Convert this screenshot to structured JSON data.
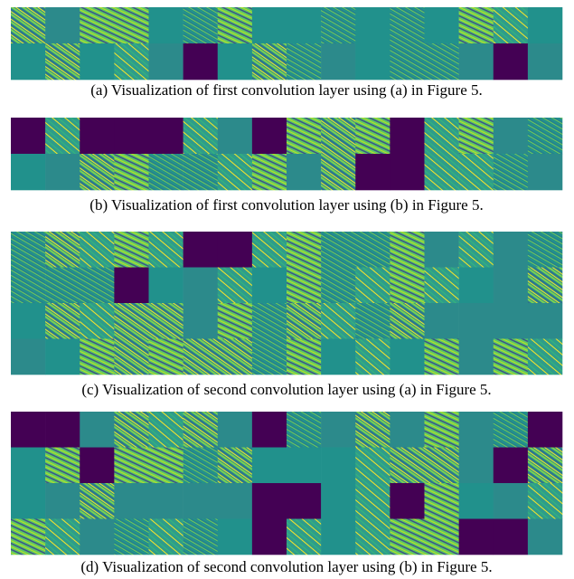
{
  "figure": {
    "panels": [
      {
        "caption": "(a)  Visualization of first convolution layer using (a) in Figure 5."
      },
      {
        "caption": "(b)  Visualization of first convolution layer using (b) in Figure 5."
      },
      {
        "caption": "(c)  Visualization of second convolution layer using (a) in Figure 5."
      },
      {
        "caption": "(d)  Visualization of second convolution layer using (b) in Figure 5."
      }
    ]
  }
}
